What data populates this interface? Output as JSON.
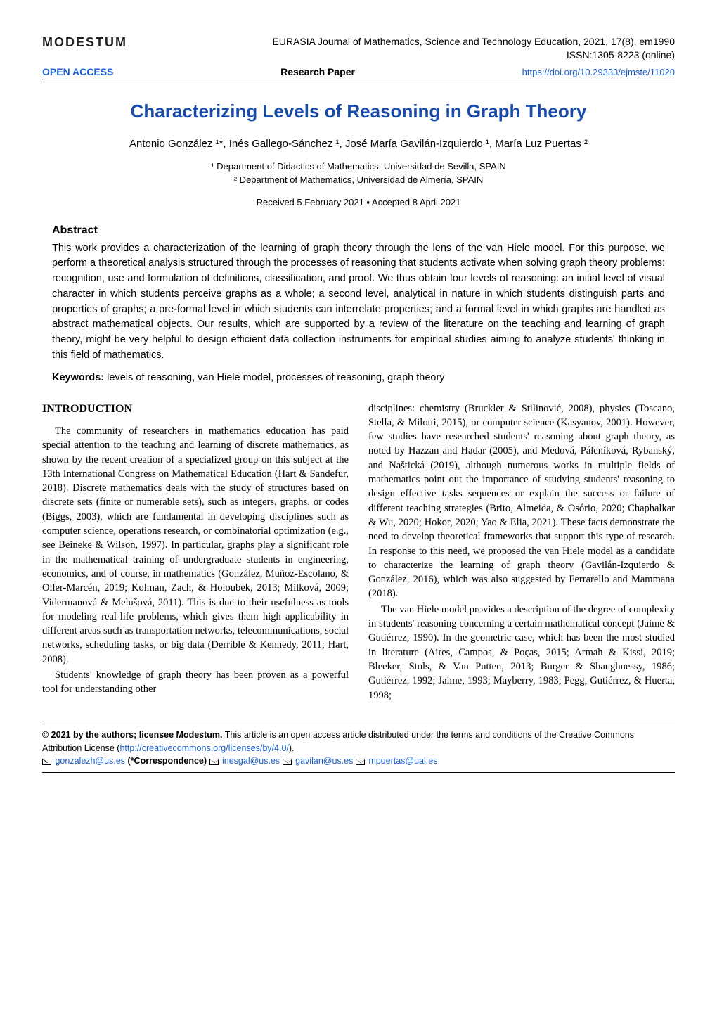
{
  "header": {
    "publisher": "MODESTUM",
    "journal_info": "EURASIA Journal of Mathematics, Science and Technology Education, 2021, 17(8), em1990",
    "issn": "ISSN:1305-8223 (online)",
    "open_access": "OPEN ACCESS",
    "paper_type": "Research Paper",
    "doi": "https://doi.org/10.29333/ejmste/11020"
  },
  "title": "Characterizing Levels of Reasoning in Graph Theory",
  "authors": "Antonio González ¹*, Inés Gallego-Sánchez ¹, José María Gavilán-Izquierdo ¹, María Luz Puertas ²",
  "affiliations": {
    "a1": "¹ Department of Didactics of Mathematics, Universidad de Sevilla, SPAIN",
    "a2": "² Department of Mathematics, Universidad de Almería, SPAIN"
  },
  "dates": "Received 5 February 2021 ▪ Accepted 8 April 2021",
  "abstract": {
    "heading": "Abstract",
    "text": "This work provides a characterization of the learning of graph theory through the lens of the van Hiele model. For this purpose, we perform a theoretical analysis structured through the processes of reasoning that students activate when solving graph theory problems: recognition, use and formulation of definitions, classification, and proof. We thus obtain four levels of reasoning: an initial level of visual character in which students perceive graphs as a whole; a second level, analytical in nature in which students distinguish parts and properties of graphs; a pre-formal level in which students can interrelate properties; and a formal level in which graphs are handled as abstract mathematical objects. Our results, which are supported by a review of the literature on the teaching and learning of graph theory, might be very helpful to design efficient data collection instruments for empirical studies aiming to analyze students' thinking in this field of mathematics.",
    "keywords_label": "Keywords:",
    "keywords": " levels of reasoning, van Hiele model, processes of reasoning, graph theory"
  },
  "body": {
    "intro_heading": "INTRODUCTION",
    "col1_p1": "The community of researchers in mathematics education has paid special attention to the teaching and learning of discrete mathematics, as shown by the recent creation of a specialized group on this subject at the 13th International Congress on Mathematical Education (Hart & Sandefur, 2018). Discrete mathematics deals with the study of structures based on discrete sets (finite or numerable sets), such as integers, graphs, or codes (Biggs, 2003), which are fundamental in developing disciplines such as computer science, operations research, or combinatorial optimization (e.g., see Beineke & Wilson, 1997). In particular, graphs play a significant role in the mathematical training of undergraduate students in engineering, economics, and of course, in mathematics (González, Muñoz-Escolano, & Oller-Marcén, 2019; Kolman, Zach, & Holoubek, 2013; Milková, 2009; Vidermanová & Melušová, 2011). This is due to their usefulness as tools for modeling real-life problems, which gives them high applicability in different areas such as transportation networks, telecommunications, social networks, scheduling tasks, or big data (Derrible & Kennedy, 2011; Hart, 2008).",
    "col1_p2": "Students' knowledge of graph theory has been proven as a powerful tool for understanding other",
    "col2_p1": "disciplines: chemistry (Bruckler & Stilinović, 2008), physics (Toscano, Stella, & Milotti, 2015), or computer science (Kasyanov, 2001). However, few studies have researched students' reasoning about graph theory, as noted by Hazzan and Hadar (2005), and Medová, Páleníková, Rybanský, and Naštická (2019), although numerous works in multiple fields of mathematics point out the importance of studying students' reasoning to design effective tasks sequences or explain the success or failure of different teaching strategies (Brito, Almeida, & Osório, 2020; Chaphalkar & Wu, 2020; Hokor, 2020; Yao & Elia, 2021). These facts demonstrate the need to develop theoretical frameworks that support this type of research. In response to this need, we proposed the van Hiele model as a candidate to characterize the learning of graph theory (Gavilán-Izquierdo & González, 2016), which was also suggested by Ferrarello and Mammana (2018).",
    "col2_p2": "The van Hiele model provides a description of the degree of complexity in students' reasoning concerning a certain mathematical concept (Jaime & Gutiérrez, 1990). In the geometric case, which has been the most studied in literature (Aires, Campos, & Poças, 2015; Armah & Kissi, 2019; Bleeker, Stols, & Van Putten, 2013; Burger & Shaughnessy, 1986; Gutiérrez, 1992; Jaime, 1993; Mayberry, 1983; Pegg, Gutiérrez, & Huerta, 1998;"
  },
  "footer": {
    "license_bold": "© 2021 by the authors; licensee Modestum.",
    "license_text": " This article is an open access article distributed under the terms and conditions of the Creative Commons Attribution License (",
    "license_url": "http://creativecommons.org/licenses/by/4.0/",
    "license_close": ").",
    "emails": {
      "e1": "gonzalezh@us.es",
      "e1_label": " (*Correspondence) ",
      "e2": "inesgal@us.es",
      "e3": "gavilan@us.es",
      "e4": "mpuertas@ual.es"
    }
  },
  "colors": {
    "link_blue": "#1a5fd0",
    "title_blue": "#1a4ba8"
  }
}
